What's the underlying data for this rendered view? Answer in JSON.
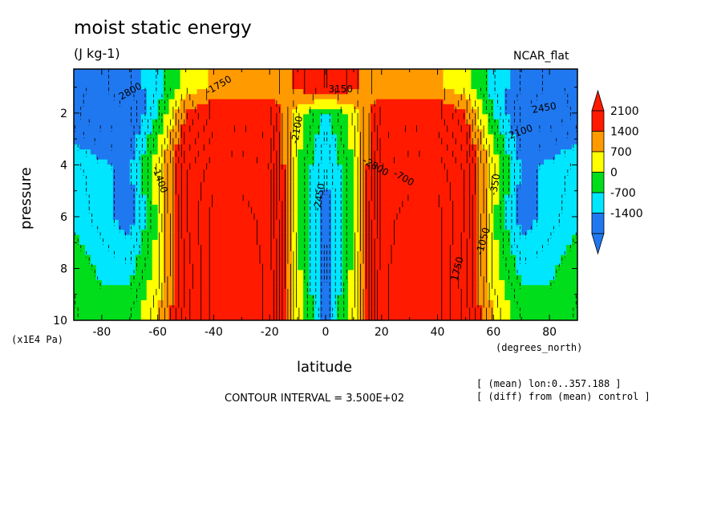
{
  "chart_data": {
    "type": "heatmap",
    "title": "moist static energy",
    "subtitle": "(J kg-1)",
    "dataset_label": "NCAR_flat",
    "xlabel": "latitude",
    "x_units": "(degrees_north)",
    "ylabel": "pressure",
    "y_units": "(x1E4 Pa)",
    "xlim": [
      -90,
      90
    ],
    "ylim": [
      10,
      0.3
    ],
    "x_ticks": [
      -80,
      -60,
      -40,
      -20,
      0,
      20,
      40,
      60,
      80
    ],
    "y_ticks": [
      2,
      4,
      6,
      8,
      10
    ],
    "colorbar": {
      "labels": [
        2100,
        1400,
        700,
        0,
        -700,
        -1400
      ],
      "levels": [
        -2100,
        -1400,
        -700,
        0,
        700,
        1400,
        2100
      ],
      "colors": [
        "#1f78f0",
        "#00e6ff",
        "#00dd1a",
        "#ffff00",
        "#ff9a00",
        "#ff1a00"
      ],
      "extend": "both"
    },
    "field_samples": {
      "lat": [
        -90,
        -80,
        -70,
        -60,
        -50,
        -40,
        -30,
        -20,
        -10,
        0,
        10,
        20,
        30,
        40,
        50,
        60,
        70,
        80,
        90
      ],
      "pressure": [
        1,
        2,
        4,
        6,
        8,
        10
      ],
      "values": [
        [
          -2000,
          -2200,
          -1800,
          -1000,
          300,
          800,
          800,
          800,
          1500,
          2500,
          1500,
          800,
          800,
          800,
          300,
          -1000,
          -1800,
          -2200,
          -2000
        ],
        [
          -2000,
          -2400,
          -2200,
          -700,
          1400,
          2200,
          2300,
          2200,
          400,
          -900,
          400,
          2200,
          2300,
          2200,
          1400,
          -700,
          -2200,
          -2400,
          -2000
        ],
        [
          -900,
          -1300,
          -1500,
          400,
          2400,
          3000,
          3000,
          2800,
          0,
          -1400,
          0,
          2800,
          3000,
          3000,
          2400,
          400,
          -1500,
          -1300,
          -900
        ],
        [
          -800,
          -1200,
          -1700,
          100,
          2400,
          3300,
          3300,
          3000,
          0,
          -1700,
          0,
          3000,
          3300,
          3300,
          2400,
          100,
          -1700,
          -1200,
          -800
        ],
        [
          -400,
          -800,
          -900,
          200,
          2200,
          3300,
          3300,
          3100,
          200,
          -1800,
          200,
          3100,
          3300,
          3300,
          2200,
          200,
          -900,
          -800,
          -400
        ],
        [
          -300,
          -500,
          -300,
          700,
          2300,
          3300,
          3300,
          3100,
          400,
          -1600,
          400,
          3100,
          3300,
          3300,
          2300,
          700,
          -300,
          -500,
          -300
        ]
      ]
    },
    "contour_interval_text": "CONTOUR INTERVAL = 3.500E+02",
    "contour_labels": [
      "-1400",
      "-1750",
      "-2100",
      "-2450",
      "-2800",
      "-700",
      "-350",
      "1750",
      "2100",
      "2450",
      "2800",
      "3150",
      "-1050"
    ]
  },
  "annotations": {
    "lon_range": "[ (mean) lon:0..357.188 ]",
    "diff": "[ (diff) from (mean) control ]"
  },
  "colors": {
    "background": "#ffffff",
    "contour": "#000000"
  }
}
